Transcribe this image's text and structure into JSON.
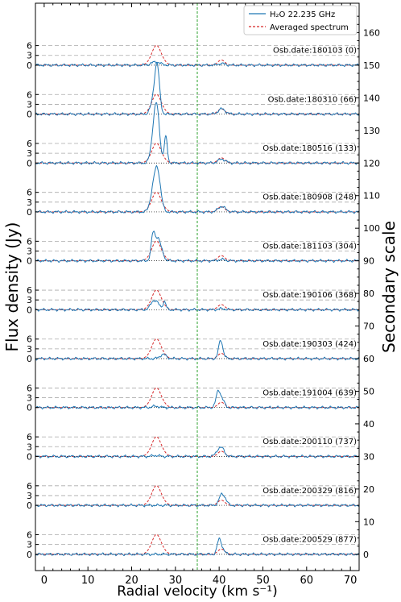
{
  "chart_data": {
    "type": "line",
    "xlabel": "Radial velocity (km s⁻¹)",
    "ylabel": "Flux density (Jy)",
    "y2label": "Secondary scale",
    "xlim": [
      -2,
      72
    ],
    "xticks": [
      0,
      10,
      20,
      30,
      40,
      50,
      60,
      70
    ],
    "y2lim": [
      -5,
      169
    ],
    "y2ticks": [
      0,
      10,
      20,
      30,
      40,
      50,
      60,
      70,
      80,
      90,
      100,
      110,
      120,
      130,
      140,
      150,
      160
    ],
    "panel_yticks": [
      0,
      3,
      6
    ],
    "reference_line_x": 35,
    "legend": {
      "position": "top-right",
      "entries": [
        {
          "label": "H₂O 22.235 GHz",
          "color": "#1f77b4",
          "style": "solid"
        },
        {
          "label": "Averaged spectrum",
          "color": "#d62728",
          "style": "dashed"
        }
      ]
    },
    "colors": {
      "observed": "#1f77b4",
      "averaged": "#d62728",
      "reference": "#2ca02c",
      "guide": "#aaaaaa"
    },
    "averaged_spectrum": {
      "components": [
        {
          "center": 25.7,
          "width": 0.9,
          "peak": 4.8
        },
        {
          "center": 24.7,
          "width": 1.0,
          "peak": 1.4
        },
        {
          "center": 27.0,
          "width": 0.9,
          "peak": 1.2
        },
        {
          "center": 40.5,
          "width": 0.8,
          "peak": 1.6
        }
      ]
    },
    "series": [
      {
        "label": "Osb.date:180103 (0)",
        "offset": 150,
        "components": [
          {
            "center": 25.5,
            "width": 1.0,
            "peak": 1.0
          },
          {
            "center": 40.6,
            "width": 0.8,
            "peak": 0.5
          }
        ]
      },
      {
        "label": "Osb.date:180310 (66)",
        "offset": 135,
        "components": [
          {
            "center": 25.8,
            "width": 0.55,
            "peak": 15.0
          },
          {
            "center": 24.8,
            "width": 0.6,
            "peak": 3.0
          },
          {
            "center": 40.6,
            "width": 0.8,
            "peak": 1.6
          }
        ]
      },
      {
        "label": "Osb.date:180516 (133)",
        "offset": 120,
        "components": [
          {
            "center": 25.7,
            "width": 0.65,
            "peak": 17.0
          },
          {
            "center": 27.8,
            "width": 0.35,
            "peak": 8.0
          },
          {
            "center": 24.8,
            "width": 0.6,
            "peak": 4.0
          },
          {
            "center": 40.6,
            "width": 0.8,
            "peak": 1.2
          }
        ]
      },
      {
        "label": "Osb.date:180908 (248)",
        "offset": 105,
        "components": [
          {
            "center": 25.8,
            "width": 0.75,
            "peak": 13.5
          },
          {
            "center": 24.6,
            "width": 0.6,
            "peak": 3.0
          },
          {
            "center": 40.6,
            "width": 0.8,
            "peak": 1.7
          }
        ]
      },
      {
        "label": "Osb.date:181103 (304)",
        "offset": 90,
        "components": [
          {
            "center": 24.9,
            "width": 0.45,
            "peak": 8.0
          },
          {
            "center": 26.0,
            "width": 0.55,
            "peak": 6.5
          },
          {
            "center": 27.0,
            "width": 0.5,
            "peak": 2.0
          },
          {
            "center": 40.6,
            "width": 0.8,
            "peak": 0.4
          }
        ]
      },
      {
        "label": "Osb.date:190106 (368)",
        "offset": 75,
        "components": [
          {
            "center": 25.0,
            "width": 0.7,
            "peak": 2.5
          },
          {
            "center": 27.5,
            "width": 0.35,
            "peak": 2.5
          },
          {
            "center": 26.0,
            "width": 0.6,
            "peak": 1.2
          },
          {
            "center": 40.6,
            "width": 0.8,
            "peak": 0.3
          }
        ]
      },
      {
        "label": "Osb.date:190303 (424)",
        "offset": 60,
        "components": [
          {
            "center": 27.2,
            "width": 0.7,
            "peak": 1.3
          },
          {
            "center": 40.3,
            "width": 0.45,
            "peak": 5.0
          },
          {
            "center": 40.8,
            "width": 0.5,
            "peak": 1.0
          }
        ]
      },
      {
        "label": "Osb.date:191004 (639)",
        "offset": 45,
        "components": [
          {
            "center": 39.8,
            "width": 0.5,
            "peak": 5.0
          },
          {
            "center": 40.8,
            "width": 0.5,
            "peak": 2.0
          },
          {
            "center": 25.5,
            "width": 0.8,
            "peak": 0.4
          }
        ]
      },
      {
        "label": "Osb.date:200110 (737)",
        "offset": 30,
        "components": [
          {
            "center": 40.1,
            "width": 0.7,
            "peak": 2.5
          },
          {
            "center": 41.0,
            "width": 0.5,
            "peak": 1.0
          },
          {
            "center": 25.5,
            "width": 0.8,
            "peak": 0.3
          }
        ]
      },
      {
        "label": "Osb.date:200329 (816)",
        "offset": 15,
        "components": [
          {
            "center": 40.6,
            "width": 0.6,
            "peak": 3.3
          },
          {
            "center": 41.5,
            "width": 0.5,
            "peak": 1.0
          }
        ]
      },
      {
        "label": "Osb.date:200529 (877)",
        "offset": 0,
        "components": [
          {
            "center": 40.0,
            "width": 0.45,
            "peak": 4.4
          },
          {
            "center": 40.8,
            "width": 0.5,
            "peak": 1.3
          }
        ]
      }
    ]
  }
}
